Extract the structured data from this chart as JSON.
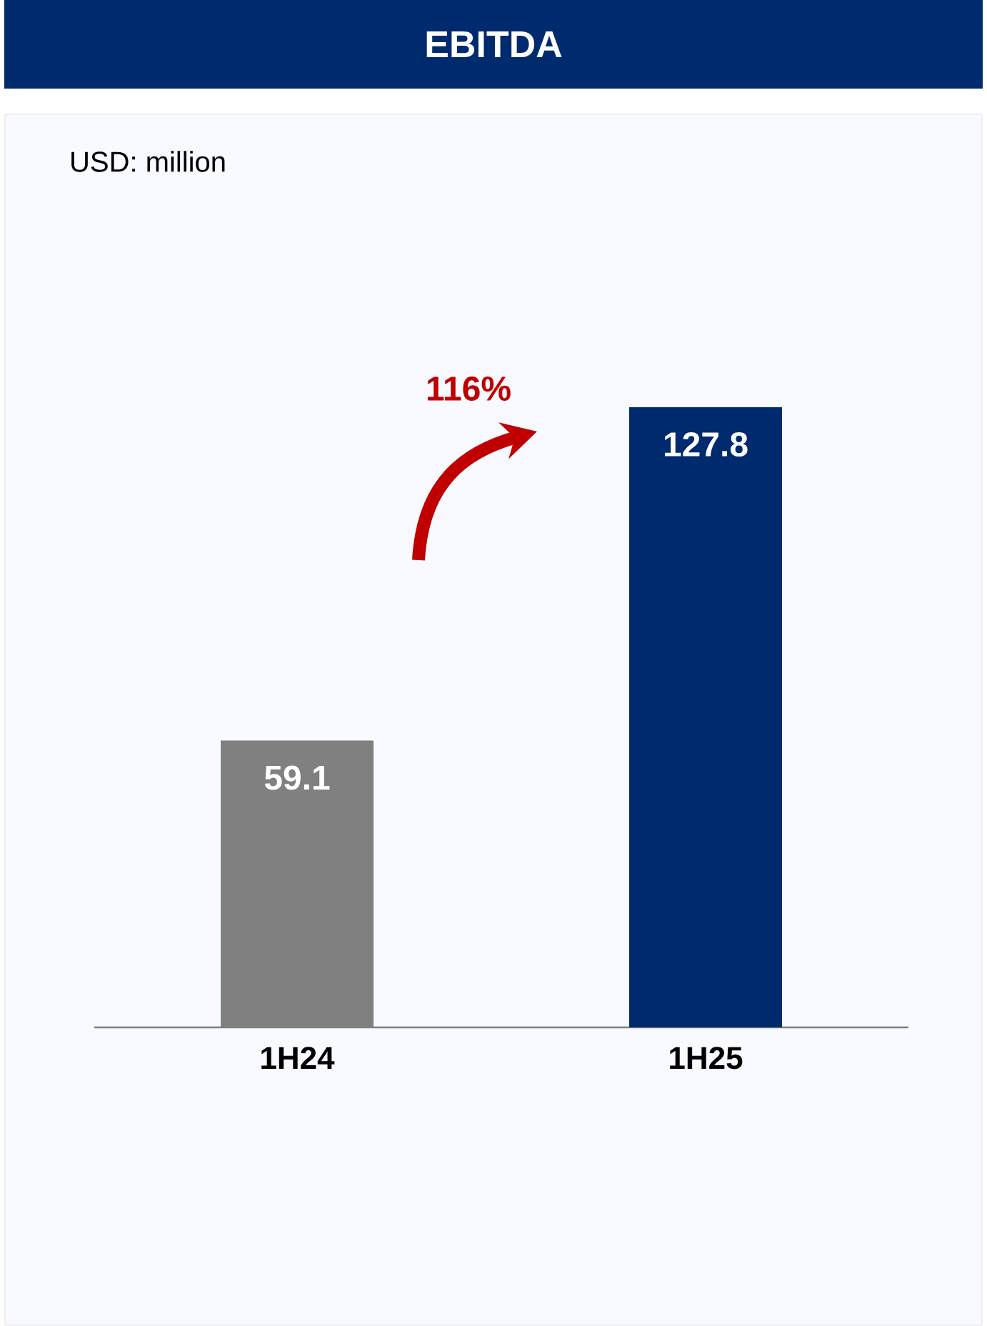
{
  "chart_data": {
    "type": "bar",
    "title": "EBITDA",
    "categories": [
      "1H24",
      "1H25"
    ],
    "values": [
      59.1,
      127.8
    ],
    "colors": [
      "#808080",
      "#002A6E"
    ],
    "data_labels": true,
    "annotations": [
      "USD: million",
      "116%"
    ]
  }
}
